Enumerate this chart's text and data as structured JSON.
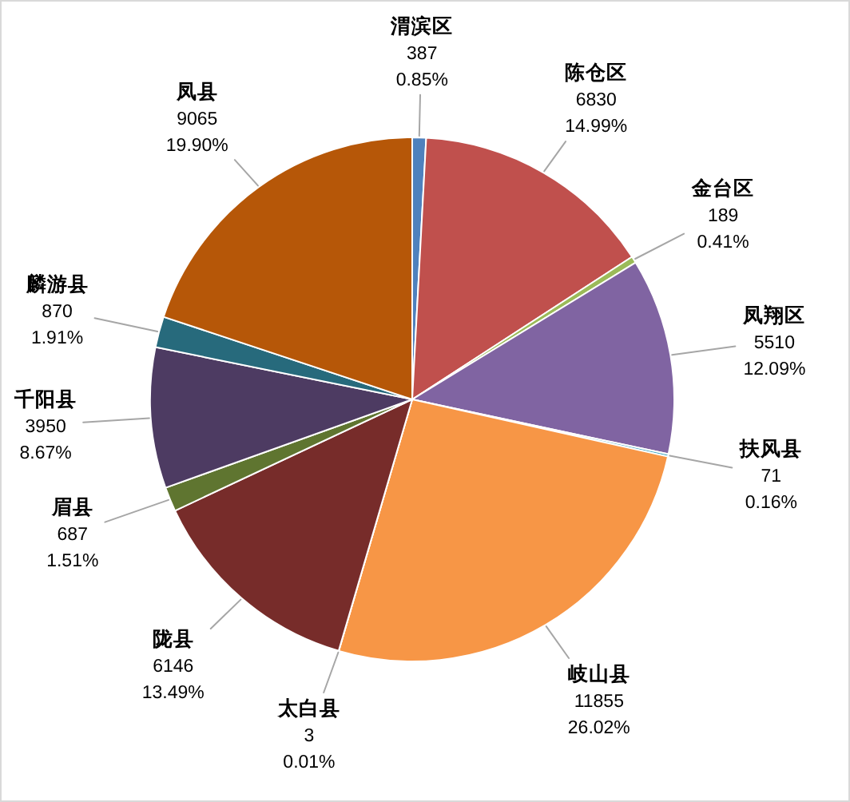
{
  "chart_data": {
    "type": "pie",
    "categories": [
      "渭滨区",
      "陈仓区",
      "金台区",
      "凤翔区",
      "扶风县",
      "岐山县",
      "太白县",
      "陇县",
      "眉县",
      "千阳县",
      "麟游县",
      "凤县"
    ],
    "values": [
      387,
      6830,
      189,
      5510,
      71,
      11855,
      3,
      6146,
      687,
      3950,
      870,
      9065
    ],
    "colors": [
      "#4f81bd",
      "#c0504d",
      "#9bbb59",
      "#8064a2",
      "#4bacc6",
      "#f79646",
      "#2c4d75",
      "#772c2a",
      "#5f7530",
      "#4d3b62",
      "#276a7c",
      "#b65708"
    ],
    "value_labels": [
      "387\n0.85%",
      "6830\n14.99%",
      "189\n0.41%",
      "5510\n12.09%",
      "71\n0.16%",
      "11855\n26.02%",
      "3\n0.01%",
      "6146\n13.49%",
      "687\n1.51%",
      "3950\n8.67%",
      "870\n1.91%",
      "9065\n19.90%"
    ]
  }
}
